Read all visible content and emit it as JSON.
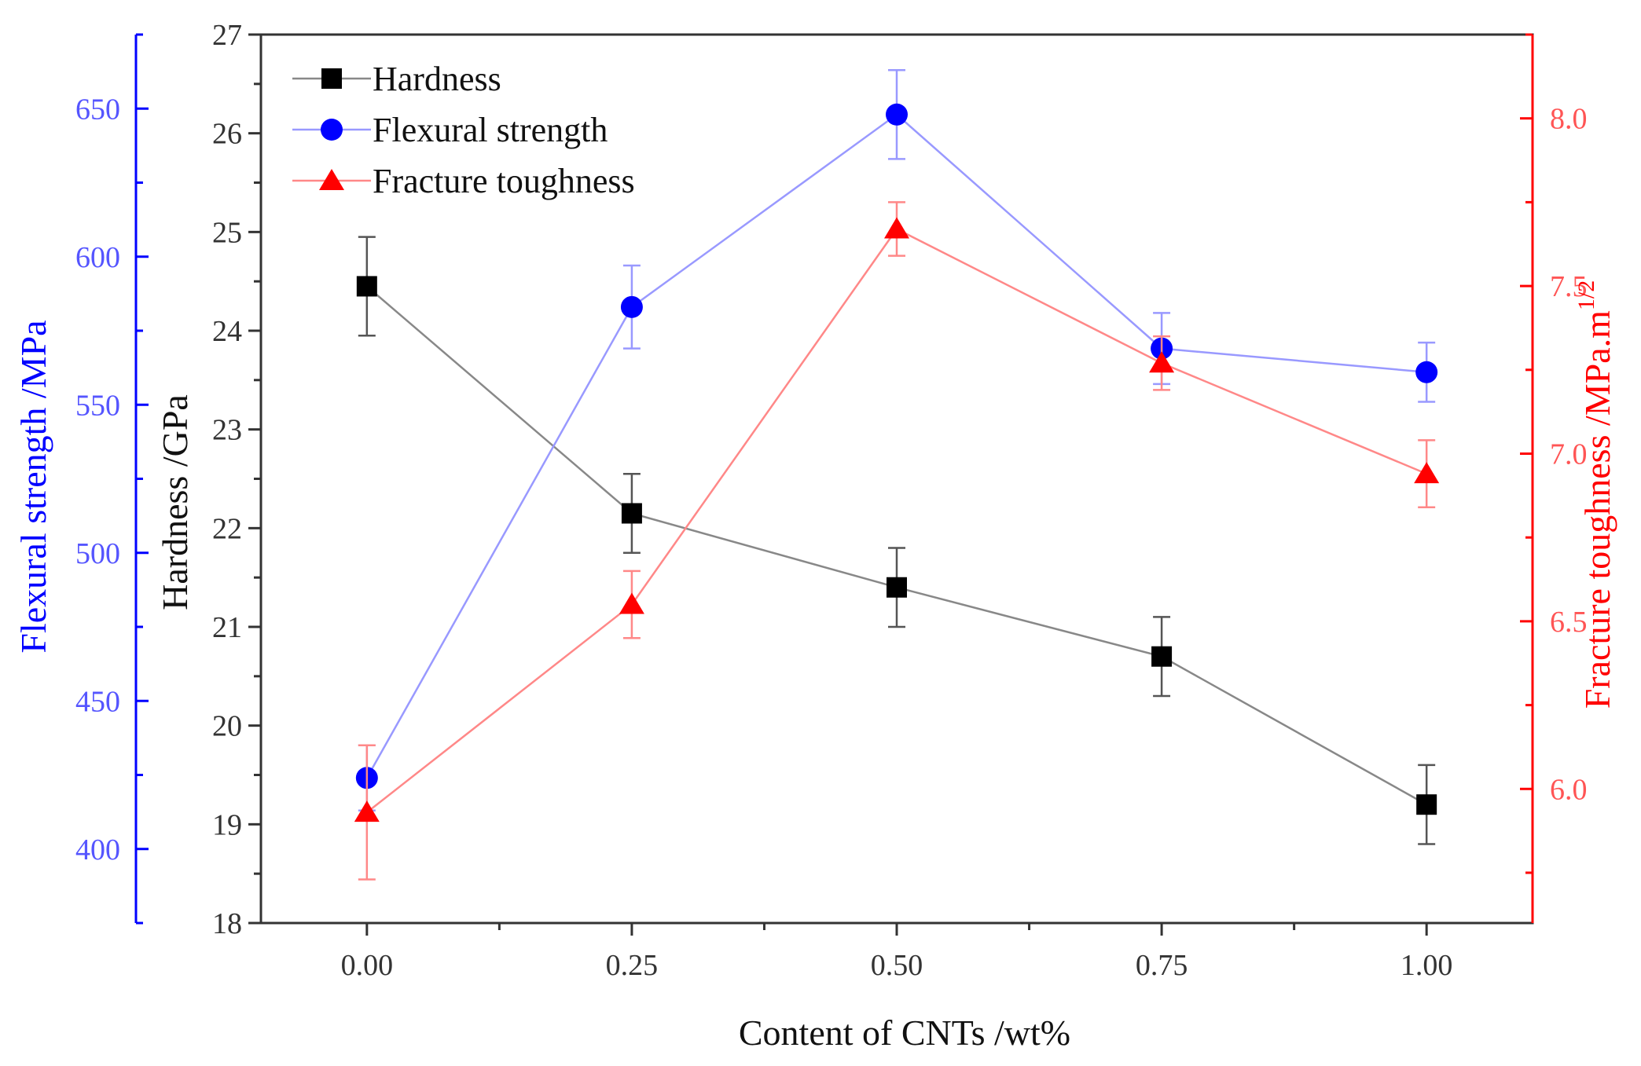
{
  "chart_data": {
    "type": "line",
    "x": [
      0.0,
      0.25,
      0.5,
      0.75,
      1.0
    ],
    "xlabel": "Content of CNTs /wt%",
    "xlim": [
      -0.1,
      1.1
    ],
    "xticks": [
      0.0,
      0.25,
      0.5,
      0.75,
      1.0
    ],
    "xtick_labels": [
      "0.00",
      "0.25",
      "0.50",
      "0.75",
      "1.00"
    ],
    "axes": {
      "hardness": {
        "label": "Hardness /GPa",
        "color": "#333333",
        "lim": [
          18,
          27
        ],
        "ticks": [
          18,
          19,
          20,
          21,
          22,
          23,
          24,
          25,
          26,
          27
        ],
        "tick_labels": [
          "18",
          "19",
          "20",
          "21",
          "22",
          "23",
          "24",
          "25",
          "26",
          "27"
        ],
        "position": "left-inner"
      },
      "flexural": {
        "label": "Flexural strength /MPa",
        "color": "#0000ff",
        "tick_color": "#5555ff",
        "lim": [
          375,
          675
        ],
        "ticks": [
          400,
          450,
          500,
          550,
          600,
          650
        ],
        "tick_labels": [
          "400",
          "450",
          "500",
          "550",
          "600",
          "650"
        ],
        "position": "left-outer"
      },
      "toughness": {
        "label": "Fracture toughness /MPa.m",
        "label_sup": "1/2",
        "color": "#ff0000",
        "tick_color": "#ff5555",
        "lim": [
          5.6,
          8.25
        ],
        "ticks": [
          6.0,
          6.5,
          7.0,
          7.5,
          8.0
        ],
        "tick_labels": [
          "6.0",
          "6.5",
          "7.0",
          "7.5",
          "8.0"
        ],
        "position": "right"
      }
    },
    "series": [
      {
        "name": "Hardness",
        "axis": "hardness",
        "marker": "square",
        "color": "#000000",
        "line_color": "#888888",
        "values": [
          24.45,
          22.15,
          21.4,
          20.7,
          19.2
        ],
        "errors": [
          0.5,
          0.4,
          0.4,
          0.4,
          0.4
        ]
      },
      {
        "name": "Flexural strength",
        "axis": "flexural",
        "marker": "circle",
        "color": "#0000ff",
        "line_color": "#9999ff",
        "values": [
          424,
          583,
          648,
          569,
          561
        ],
        "errors": [
          11,
          14,
          15,
          12,
          10
        ]
      },
      {
        "name": "Fracture toughness",
        "axis": "toughness",
        "marker": "triangle",
        "color": "#ff0000",
        "line_color": "#ff8888",
        "values": [
          5.93,
          6.55,
          7.67,
          7.27,
          6.94
        ],
        "errors": [
          0.2,
          0.1,
          0.08,
          0.08,
          0.1
        ]
      }
    ],
    "legend_position": "top-left"
  }
}
